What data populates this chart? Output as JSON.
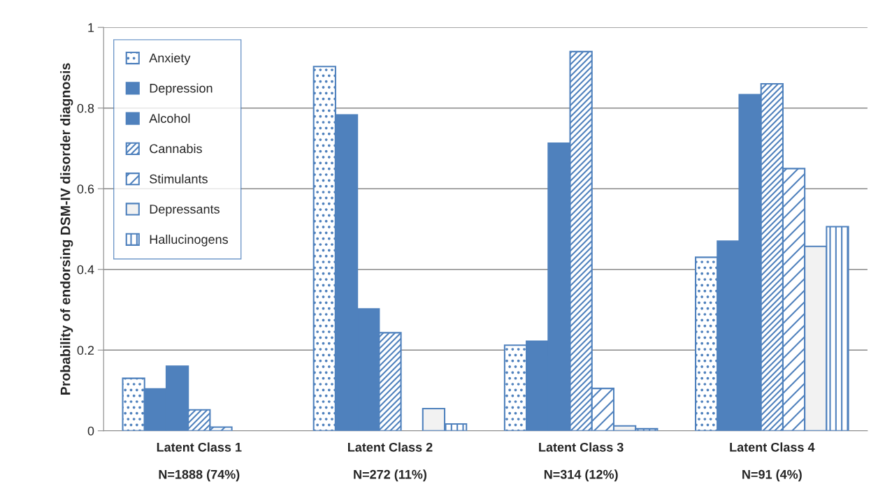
{
  "chart_data": {
    "type": "bar",
    "ylabel": "Probability of endorsing DSM-IV disorder diagnosis",
    "categories": [
      "Latent Class 1\n\nN=1888 (74%)",
      "Latent Class 2\n\nN=272 (11%)",
      "Latent Class 3\n\nN=314 (12%)",
      "Latent Class 4\n\nN=91 (4%)"
    ],
    "series": [
      {
        "name": "Anxiety",
        "color": "#4f81bd",
        "values": [
          0.13,
          0.903,
          0.212,
          0.43
        ]
      },
      {
        "name": "Depression",
        "color": "#4f81bd",
        "values": [
          0.104,
          0.783,
          0.222,
          0.47
        ]
      },
      {
        "name": "Alcohol",
        "color": "#4f81bd",
        "values": [
          0.16,
          0.302,
          0.713,
          0.833
        ]
      },
      {
        "name": "Cannabis",
        "color": "#4f81bd",
        "values": [
          0.052,
          0.243,
          0.94,
          0.86
        ]
      },
      {
        "name": "Stimulants",
        "color": "#4f81bd",
        "values": [
          0.009,
          null,
          0.105,
          0.65
        ]
      },
      {
        "name": "Depressants",
        "color": "#f2f2f2",
        "values": [
          null,
          0.055,
          0.012,
          0.457
        ]
      },
      {
        "name": "Hallucinogens",
        "color": "#4f81bd",
        "values": [
          null,
          0.017,
          0.005,
          0.506
        ]
      }
    ],
    "ylim": [
      0,
      1
    ],
    "yticks": [
      0,
      0.2,
      0.4,
      0.6,
      0.8,
      1
    ],
    "grid": "y",
    "legend": "top left"
  }
}
